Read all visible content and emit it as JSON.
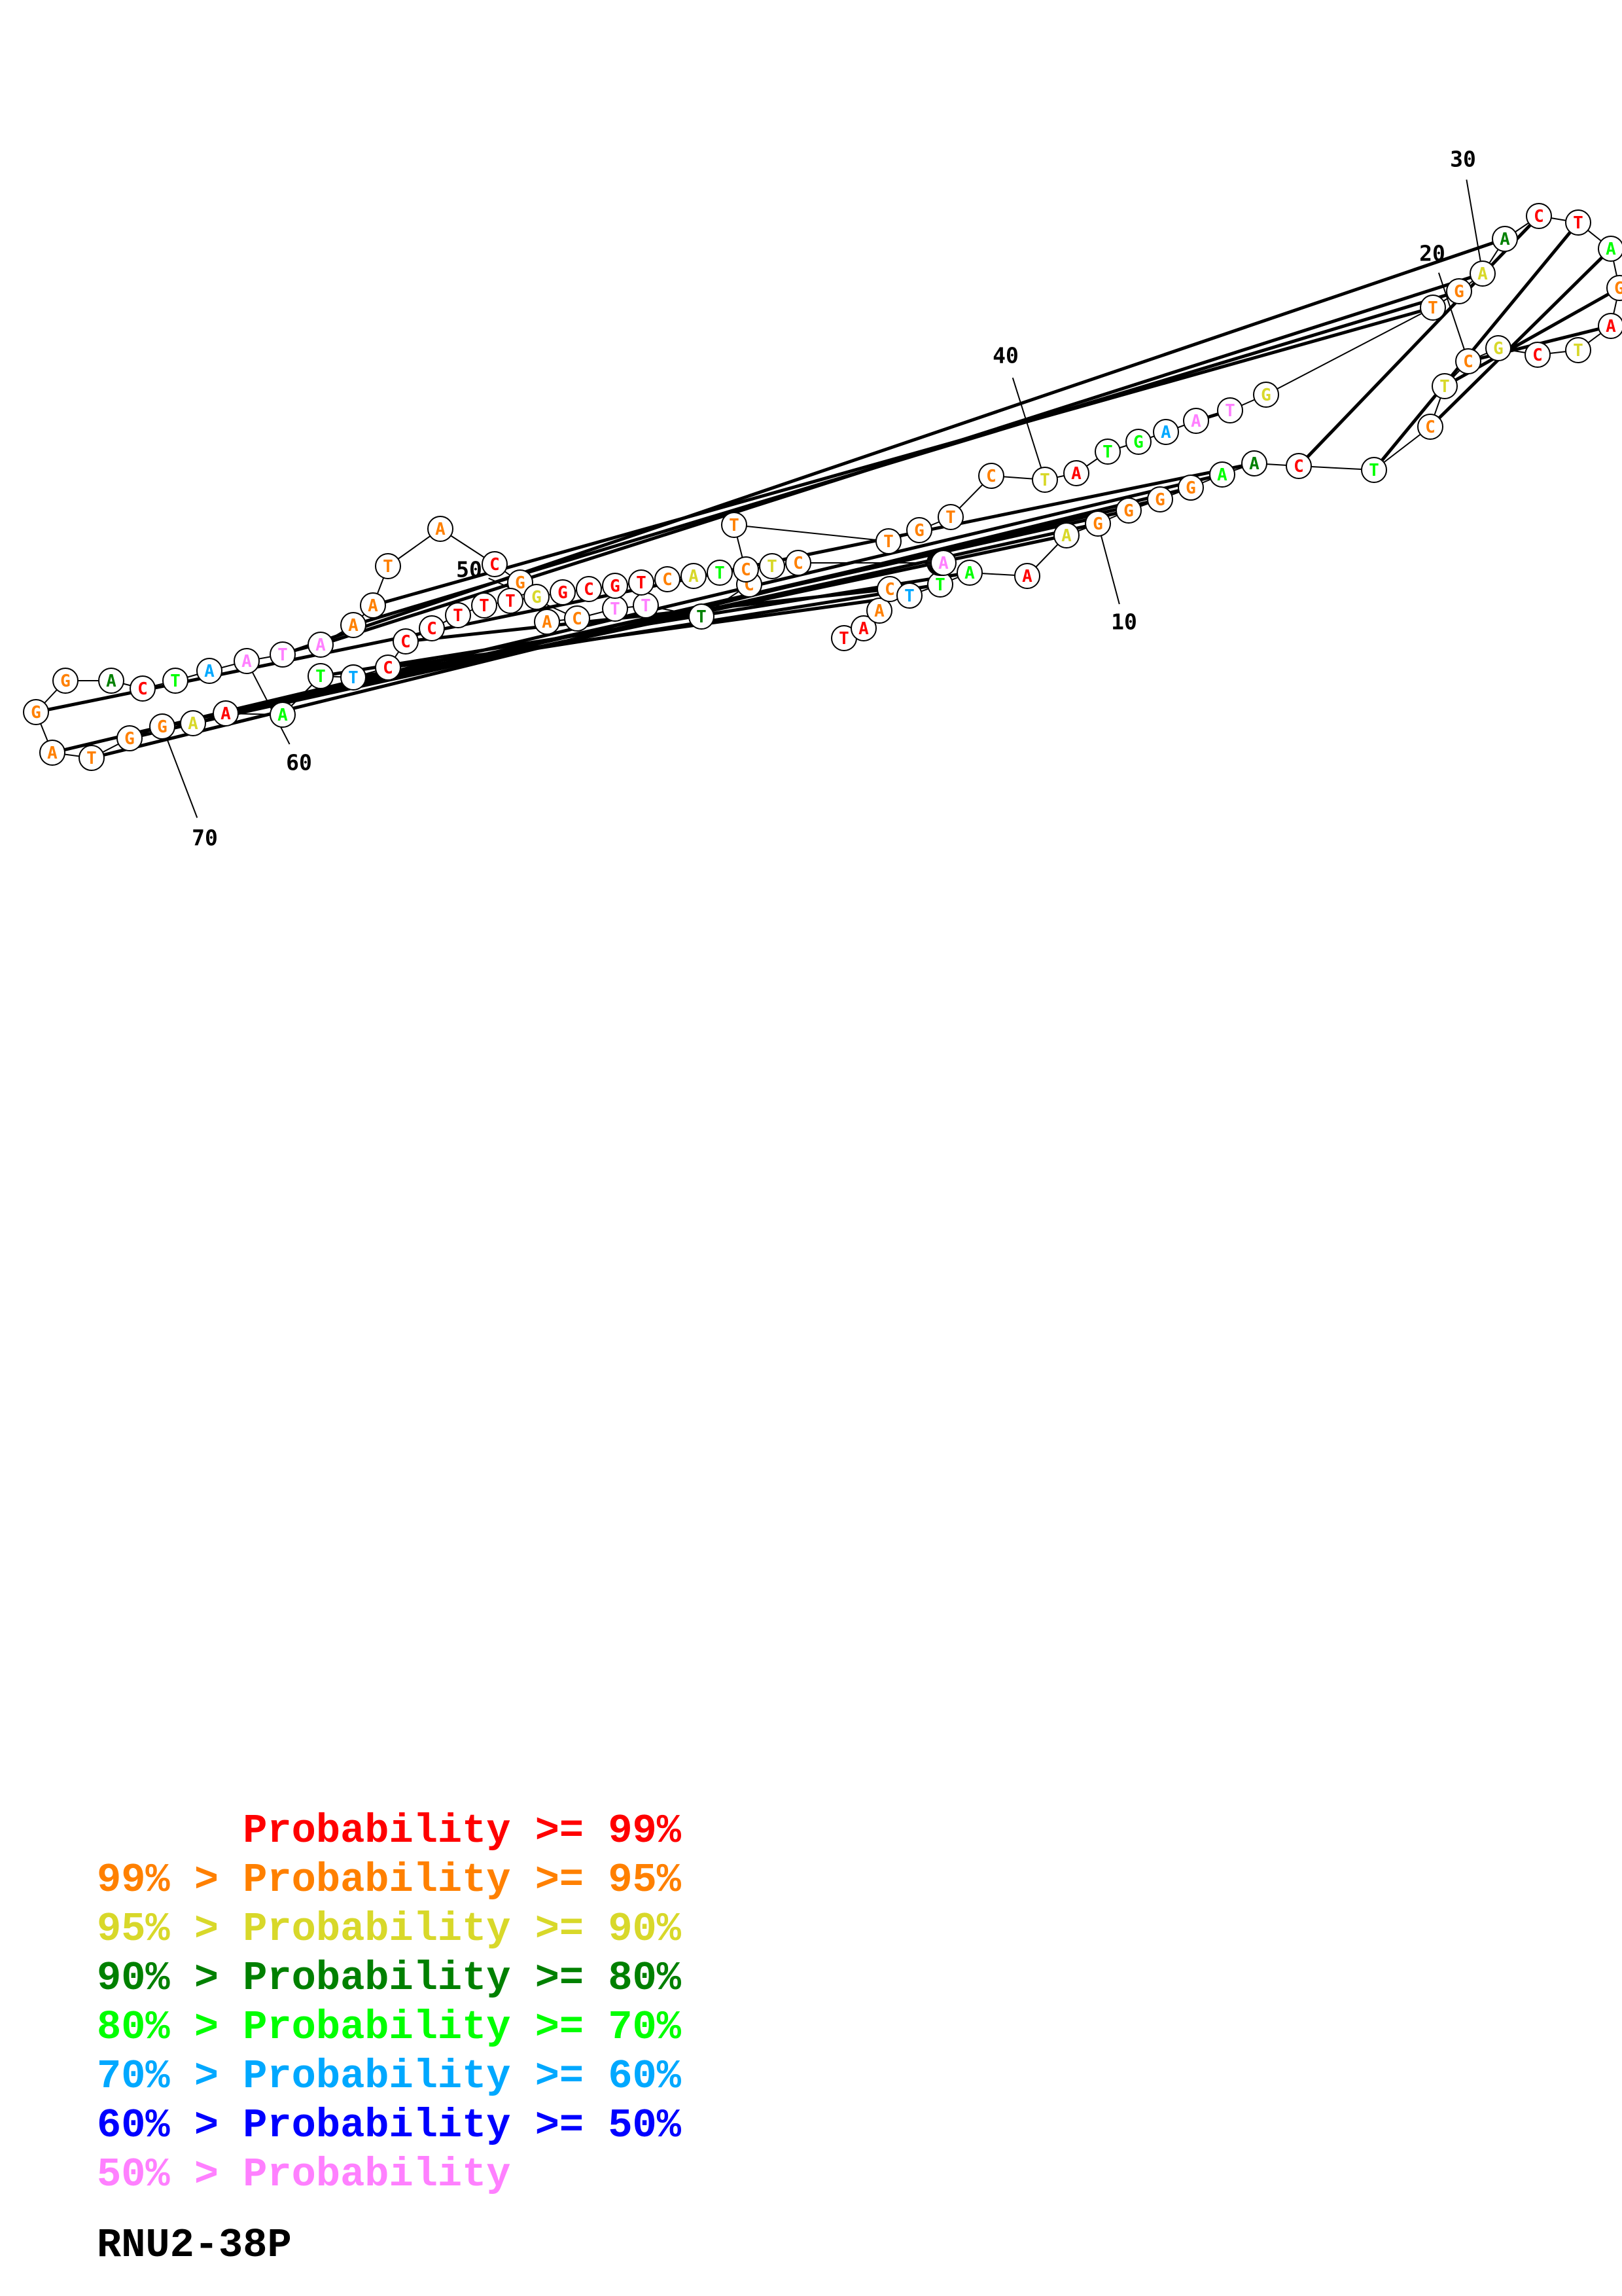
{
  "title": "RNU2-38P",
  "colors": {
    "p99": "#ff0000",
    "p95": "#ff8000",
    "p90": "#d8d82a",
    "p80": "#008000",
    "p70": "#00ff00",
    "p60": "#00a8ff",
    "p50": "#0000ff",
    "plow": "#ff80ff"
  },
  "legend": [
    {
      "prefix": "",
      "label": "Probability >= 99%",
      "color": "p99"
    },
    {
      "prefix": "99% > ",
      "label": "Probability >= 95%",
      "color": "p95"
    },
    {
      "prefix": "95% > ",
      "label": "Probability >= 90%",
      "color": "p90"
    },
    {
      "prefix": "90% > ",
      "label": "Probability >= 80%",
      "color": "p80"
    },
    {
      "prefix": "80% > ",
      "label": "Probability >= 70%",
      "color": "p70"
    },
    {
      "prefix": "70% > ",
      "label": "Probability >= 60%",
      "color": "p60"
    },
    {
      "prefix": "60% > ",
      "label": "Probability >= 50%",
      "color": "p50"
    },
    {
      "prefix": "50% > ",
      "label": "Probability",
      "color": "plow"
    }
  ],
  "nucleotides": [
    {
      "i": 1,
      "base": "T",
      "p": "p99"
    },
    {
      "i": 2,
      "base": "A",
      "p": "p99"
    },
    {
      "i": 3,
      "base": "A",
      "p": "p95"
    },
    {
      "i": 4,
      "base": "C",
      "p": "p95"
    },
    {
      "i": 5,
      "base": "T",
      "p": "p60"
    },
    {
      "i": 6,
      "base": "T",
      "p": "p70"
    },
    {
      "i": 7,
      "base": "A",
      "p": "p70"
    },
    {
      "i": 8,
      "base": "A",
      "p": "p99"
    },
    {
      "i": 9,
      "base": "A",
      "p": "p90"
    },
    {
      "i": 10,
      "base": "G",
      "p": "p95"
    },
    {
      "i": 11,
      "base": "G",
      "p": "p95"
    },
    {
      "i": 12,
      "base": "G",
      "p": "p95"
    },
    {
      "i": 13,
      "base": "G",
      "p": "p95"
    },
    {
      "i": 14,
      "base": "A",
      "p": "p70"
    },
    {
      "i": 15,
      "base": "A",
      "p": "p80"
    },
    {
      "i": 16,
      "base": "C",
      "p": "p99"
    },
    {
      "i": 17,
      "base": "T",
      "p": "p70"
    },
    {
      "i": 18,
      "base": "C",
      "p": "p95"
    },
    {
      "i": 19,
      "base": "T",
      "p": "p90"
    },
    {
      "i": 20,
      "base": "C",
      "p": "p95"
    },
    {
      "i": 21,
      "base": "G",
      "p": "p90"
    },
    {
      "i": 22,
      "base": "C",
      "p": "p99"
    },
    {
      "i": 23,
      "base": "T",
      "p": "p90"
    },
    {
      "i": 24,
      "base": "A",
      "p": "p99"
    },
    {
      "i": 25,
      "base": "G",
      "p": "p95"
    },
    {
      "i": 26,
      "base": "A",
      "p": "p70"
    },
    {
      "i": 27,
      "base": "T",
      "p": "p99"
    },
    {
      "i": 28,
      "base": "C",
      "p": "p99"
    },
    {
      "i": 29,
      "base": "A",
      "p": "p80"
    },
    {
      "i": 30,
      "base": "A",
      "p": "p90"
    },
    {
      "i": 31,
      "base": "G",
      "p": "p95"
    },
    {
      "i": 32,
      "base": "T",
      "p": "p95"
    },
    {
      "i": 33,
      "base": "G",
      "p": "p90"
    },
    {
      "i": 34,
      "base": "T",
      "p": "plow"
    },
    {
      "i": 35,
      "base": "A",
      "p": "plow"
    },
    {
      "i": 36,
      "base": "A",
      "p": "p60"
    },
    {
      "i": 37,
      "base": "G",
      "p": "p70"
    },
    {
      "i": 38,
      "base": "T",
      "p": "p70"
    },
    {
      "i": 39,
      "base": "A",
      "p": "p99"
    },
    {
      "i": 40,
      "base": "T",
      "p": "p90"
    },
    {
      "i": 41,
      "base": "C",
      "p": "p95"
    },
    {
      "i": 42,
      "base": "T",
      "p": "p95"
    },
    {
      "i": 43,
      "base": "G",
      "p": "p95"
    },
    {
      "i": 44,
      "base": "T",
      "p": "p95"
    },
    {
      "i": 45,
      "base": "T",
      "p": "p95"
    },
    {
      "i": 46,
      "base": "C",
      "p": "p95"
    },
    {
      "i": 47,
      "base": "T",
      "p": "p80"
    },
    {
      "i": 48,
      "base": "T",
      "p": "plow"
    },
    {
      "i": 49,
      "base": "T",
      "p": "plow"
    },
    {
      "i": 50,
      "base": "C",
      "p": "p95"
    },
    {
      "i": 51,
      "base": "A",
      "p": "p95"
    },
    {
      "i": 52,
      "base": "G",
      "p": "p95"
    },
    {
      "i": 53,
      "base": "C",
      "p": "p99"
    },
    {
      "i": 54,
      "base": "A",
      "p": "p95"
    },
    {
      "i": 55,
      "base": "T",
      "p": "p95"
    },
    {
      "i": 56,
      "base": "A",
      "p": "p95"
    },
    {
      "i": 57,
      "base": "A",
      "p": "p95"
    },
    {
      "i": 58,
      "base": "A",
      "p": "plow"
    },
    {
      "i": 59,
      "base": "T",
      "p": "plow"
    },
    {
      "i": 60,
      "base": "A",
      "p": "plow"
    },
    {
      "i": 61,
      "base": "A",
      "p": "p60"
    },
    {
      "i": 62,
      "base": "T",
      "p": "p70"
    },
    {
      "i": 63,
      "base": "C",
      "p": "p99"
    },
    {
      "i": 64,
      "base": "A",
      "p": "p80"
    },
    {
      "i": 65,
      "base": "G",
      "p": "p95"
    },
    {
      "i": 66,
      "base": "G",
      "p": "p95"
    },
    {
      "i": 67,
      "base": "A",
      "p": "p95"
    },
    {
      "i": 68,
      "base": "T",
      "p": "p95"
    },
    {
      "i": 69,
      "base": "G",
      "p": "p95"
    },
    {
      "i": 70,
      "base": "G",
      "p": "p95"
    },
    {
      "i": 71,
      "base": "A",
      "p": "p90"
    },
    {
      "i": 72,
      "base": "A",
      "p": "p99"
    },
    {
      "i": 73,
      "base": "A",
      "p": "p70"
    },
    {
      "i": 74,
      "base": "T",
      "p": "p70"
    },
    {
      "i": 75,
      "base": "T",
      "p": "p60"
    },
    {
      "i": 76,
      "base": "C",
      "p": "p99"
    },
    {
      "i": 77,
      "base": "C",
      "p": "p99"
    },
    {
      "i": 78,
      "base": "C",
      "p": "p99"
    },
    {
      "i": 79,
      "base": "T",
      "p": "p99"
    },
    {
      "i": 80,
      "base": "T",
      "p": "p99"
    },
    {
      "i": 81,
      "base": "T",
      "p": "p99"
    },
    {
      "i": 82,
      "base": "G",
      "p": "p90"
    },
    {
      "i": 83,
      "base": "G",
      "p": "p99"
    },
    {
      "i": 84,
      "base": "C",
      "p": "p99"
    },
    {
      "i": 85,
      "base": "G",
      "p": "p99"
    },
    {
      "i": 86,
      "base": "T",
      "p": "p99"
    },
    {
      "i": 87,
      "base": "C",
      "p": "p95"
    },
    {
      "i": 88,
      "base": "A",
      "p": "p90"
    },
    {
      "i": 89,
      "base": "T",
      "p": "p70"
    },
    {
      "i": 90,
      "base": "C",
      "p": "p95"
    },
    {
      "i": 91,
      "base": "T",
      "p": "p90"
    },
    {
      "i": 92,
      "base": "C",
      "p": "p95"
    },
    {
      "i": 93,
      "base": "G",
      "p": "p95"
    },
    {
      "i": 94,
      "base": "C",
      "p": "p90"
    },
    {
      "i": 95,
      "base": "T",
      "p": "p95"
    },
    {
      "i": 96,
      "base": "A",
      "p": "plow"
    }
  ],
  "pairs": [
    [
      16,
      28
    ],
    [
      17,
      27
    ],
    [
      18,
      26
    ],
    [
      19,
      25
    ],
    [
      20,
      24
    ],
    [
      4,
      77
    ],
    [
      5,
      76
    ],
    [
      6,
      75
    ],
    [
      7,
      74
    ],
    [
      9,
      72
    ],
    [
      10,
      71
    ],
    [
      11,
      70
    ],
    [
      12,
      69
    ],
    [
      13,
      68
    ],
    [
      14,
      67
    ],
    [
      15,
      66
    ],
    [
      29,
      59
    ],
    [
      30,
      58
    ],
    [
      31,
      57
    ],
    [
      32,
      56
    ],
    [
      34,
      35
    ]
  ],
  "numbers": [
    {
      "label": "10"
    },
    {
      "label": "20"
    },
    {
      "label": "30"
    },
    {
      "label": "40"
    },
    {
      "label": "50"
    },
    {
      "label": "60"
    },
    {
      "label": "70"
    }
  ]
}
